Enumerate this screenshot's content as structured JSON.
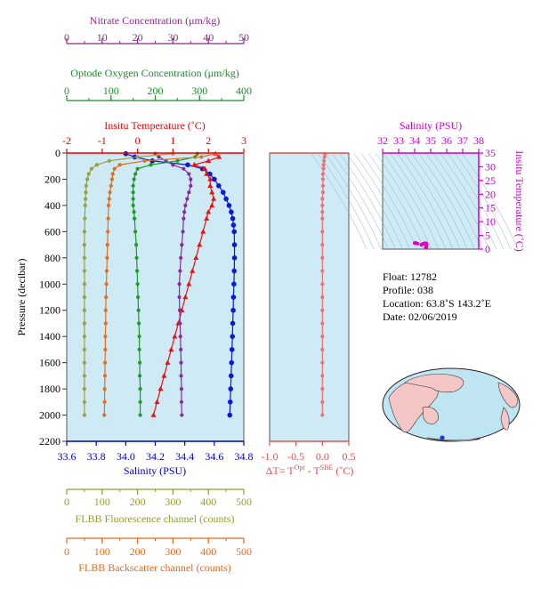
{
  "chart_data": [
    {
      "type": "line",
      "axes_top": [
        {
          "label": "Nitrate Concentration (μm/kg)",
          "color": "#8b2a8b",
          "range": [
            0,
            50
          ],
          "ticks": [
            "0",
            "10",
            "20",
            "30",
            "40",
            "50"
          ]
        },
        {
          "label": "Optode Oxygen Concentration (μm/kg)",
          "color": "#1f8a2a",
          "range": [
            0,
            400
          ],
          "ticks": [
            "0",
            "100",
            "200",
            "300",
            "400"
          ]
        },
        {
          "label": "Insitu Temperature (˚C)",
          "color": "#ee0000",
          "range": [
            -2,
            3
          ],
          "ticks": [
            "-2",
            "-1",
            "0",
            "1",
            "2",
            "3"
          ]
        }
      ],
      "axes_bottom": [
        {
          "label": "Salinity (PSU)",
          "color": "#0000bb",
          "range": [
            33.6,
            34.8
          ],
          "ticks": [
            "33.6",
            "33.8",
            "34.0",
            "34.2",
            "34.4",
            "34.6",
            "34.8"
          ]
        },
        {
          "label": "FLBB Fluorescence channel (counts)",
          "color": "#9a9a30",
          "range": [
            0,
            500
          ],
          "ticks": [
            "0",
            "100",
            "200",
            "300",
            "400",
            "500"
          ]
        },
        {
          "label": "FLBB Backscatter channel (counts)",
          "color": "#e06a1c",
          "range": [
            0,
            500
          ],
          "ticks": [
            "0",
            "100",
            "200",
            "300",
            "400",
            "500"
          ]
        }
      ],
      "y_axis": {
        "label": "Pressure (decibar)",
        "range": [
          0,
          2200
        ],
        "inverted": true,
        "ticks": [
          "0",
          "200",
          "400",
          "600",
          "800",
          "1000",
          "1200",
          "1400",
          "1600",
          "1800",
          "2000",
          "2200"
        ]
      },
      "background": "#cdeaf5",
      "series": [
        {
          "axis": "Salinity (PSU)",
          "color": "#0a18d8",
          "marker": "circle",
          "pressure": [
            5,
            30,
            60,
            90,
            120,
            160,
            200,
            250,
            300,
            350,
            400,
            450,
            500,
            550,
            600,
            700,
            800,
            900,
            1000,
            1100,
            1200,
            1300,
            1400,
            1500,
            1600,
            1700,
            1800,
            1900,
            2000
          ],
          "values": [
            34.0,
            34.06,
            34.18,
            34.42,
            34.52,
            34.57,
            34.6,
            34.63,
            34.66,
            34.68,
            34.7,
            34.715,
            34.725,
            34.73,
            34.735,
            34.737,
            34.737,
            34.735,
            34.733,
            34.73,
            34.728,
            34.725,
            34.723,
            34.72,
            34.717,
            34.714,
            34.711,
            34.708,
            34.705
          ]
        },
        {
          "axis": "Insitu Temperature (˚C)",
          "color": "#ee1010",
          "marker": "triangle",
          "pressure": [
            5,
            30,
            60,
            90,
            120,
            160,
            200,
            250,
            300,
            350,
            400,
            450,
            500,
            600,
            700,
            800,
            900,
            1000,
            1100,
            1200,
            1300,
            1400,
            1500,
            1600,
            1700,
            1800,
            1900,
            2000
          ],
          "values": [
            2.2,
            2.3,
            2.0,
            1.6,
            1.9,
            1.95,
            2.05,
            2.05,
            2.1,
            2.15,
            2.1,
            2.0,
            1.95,
            1.85,
            1.75,
            1.65,
            1.55,
            1.45,
            1.35,
            1.25,
            1.15,
            1.05,
            0.95,
            0.85,
            0.75,
            0.65,
            0.55,
            0.45
          ]
        },
        {
          "axis": "Nitrate Concentration (μm/kg)",
          "color": "#8a2a9c",
          "marker": "circle",
          "pressure": [
            5,
            30,
            60,
            90,
            120,
            160,
            200,
            250,
            300,
            350,
            400,
            450,
            500,
            600,
            700,
            800,
            900,
            1000,
            1100,
            1200,
            1300,
            1400,
            1500,
            1600,
            1700,
            1800,
            1900,
            2000
          ],
          "values": [
            25,
            26,
            28,
            30,
            33,
            34.5,
            35,
            35,
            34.5,
            34,
            33.5,
            33.2,
            33,
            32.8,
            32.5,
            32.2,
            32,
            31.8,
            31.8,
            31.9,
            32,
            32.1,
            32.2,
            32.3,
            32.3,
            32.4,
            32.4,
            32.5
          ]
        },
        {
          "axis": "Optode Oxygen Concentration (μm/kg)",
          "color": "#1f9a2a",
          "marker": "circle",
          "pressure": [
            5,
            30,
            60,
            90,
            120,
            160,
            200,
            250,
            300,
            350,
            400,
            450,
            500,
            600,
            700,
            800,
            900,
            1000,
            1100,
            1200,
            1300,
            1400,
            1500,
            1600,
            1700,
            1800,
            1900,
            2000
          ],
          "values": [
            295,
            290,
            250,
            190,
            160,
            155,
            152,
            150,
            150,
            150,
            150,
            152,
            153,
            155,
            157,
            158,
            159,
            160,
            161,
            162,
            163,
            164,
            164,
            165,
            165,
            166,
            166,
            166
          ]
        },
        {
          "axis": "FLBB Fluorescence channel (counts)",
          "color": "#9aa040",
          "marker": "circle",
          "pressure": [
            5,
            30,
            60,
            90,
            120,
            160,
            200,
            250,
            300,
            350,
            400,
            500,
            600,
            700,
            800,
            900,
            1000,
            1100,
            1200,
            1300,
            1400,
            1500,
            1600,
            1700,
            1800,
            1900,
            2000
          ],
          "values": [
            300,
            200,
            120,
            85,
            70,
            62,
            58,
            55,
            54,
            53,
            52,
            51,
            50,
            50,
            50,
            50,
            50,
            50,
            50,
            50,
            50,
            50,
            50,
            50,
            50,
            50,
            50
          ]
        },
        {
          "axis": "FLBB Backscatter channel (counts)",
          "color": "#e07020",
          "marker": "circle",
          "pressure": [
            5,
            30,
            60,
            90,
            120,
            160,
            200,
            250,
            300,
            350,
            400,
            500,
            600,
            700,
            800,
            900,
            1000,
            1100,
            1200,
            1300,
            1400,
            1500,
            1600,
            1700,
            1800,
            1900,
            2000
          ],
          "values": [
            420,
            380,
            220,
            150,
            135,
            130,
            128,
            125,
            122,
            120,
            118,
            117,
            116,
            115,
            114,
            113,
            112,
            111,
            110,
            110,
            109,
            109,
            108,
            108,
            107,
            107,
            106
          ]
        }
      ]
    },
    {
      "type": "scatter",
      "xlabel": "ΔT= Tᴼᵖᵗ - Tˢᴮᴱ (˚C)",
      "xlim": [
        -1.0,
        0.5
      ],
      "x_ticks": [
        "-1.0",
        "-0.5",
        "0.0",
        "0.5"
      ],
      "ylim": [
        0,
        2200
      ],
      "color": "#f07070",
      "pressure": [
        5,
        30,
        60,
        90,
        120,
        160,
        200,
        250,
        300,
        350,
        400,
        450,
        500,
        600,
        700,
        800,
        900,
        1000,
        1100,
        1200,
        1300,
        1400,
        1500,
        1600,
        1700,
        1800,
        1900,
        2000
      ],
      "values": [
        0.05,
        0.04,
        0.03,
        0.02,
        0.02,
        0.01,
        0.01,
        0.01,
        0.01,
        0.0,
        0.0,
        0.0,
        0.0,
        0.0,
        0.0,
        0.0,
        0.0,
        0.0,
        0.0,
        0.0,
        0.0,
        0.0,
        0.0,
        0.0,
        0.0,
        0.0,
        0.0,
        0.0
      ]
    },
    {
      "type": "scatter",
      "title": "Salinity (PSU)",
      "xlim": [
        32,
        38
      ],
      "x_ticks": [
        "32",
        "33",
        "34",
        "35",
        "36",
        "37",
        "38"
      ],
      "ylabel": "Insitu Temperature (˚C)",
      "ylim": [
        0,
        35
      ],
      "y_ticks": [
        "0",
        "5",
        "10",
        "15",
        "20",
        "25",
        "30",
        "35"
      ],
      "color": "#e000c0",
      "points": [
        [
          34.0,
          2.2
        ],
        [
          34.06,
          2.3
        ],
        [
          34.18,
          2.0
        ],
        [
          34.42,
          1.6
        ],
        [
          34.52,
          1.9
        ],
        [
          34.57,
          1.95
        ],
        [
          34.6,
          2.05
        ],
        [
          34.63,
          2.05
        ],
        [
          34.66,
          2.1
        ],
        [
          34.68,
          2.15
        ],
        [
          34.7,
          2.1
        ],
        [
          34.715,
          2.0
        ],
        [
          34.725,
          1.95
        ],
        [
          34.735,
          1.85
        ],
        [
          34.737,
          1.75
        ],
        [
          34.737,
          1.65
        ],
        [
          34.735,
          1.55
        ],
        [
          34.733,
          1.45
        ],
        [
          34.73,
          1.35
        ],
        [
          34.728,
          1.25
        ],
        [
          34.725,
          1.15
        ],
        [
          34.723,
          1.05
        ],
        [
          34.72,
          0.95
        ],
        [
          34.717,
          0.85
        ],
        [
          34.714,
          0.75
        ],
        [
          34.711,
          0.65
        ],
        [
          34.708,
          0.55
        ],
        [
          34.705,
          0.45
        ]
      ]
    }
  ],
  "info": {
    "float": "Float:  12782",
    "profile": "Profile:  038",
    "location": "Location:  63.8˚S  143.2˚E",
    "date": "Date:  02/06/2019"
  },
  "map": {
    "ocean_color": "#bfe4f2",
    "land_color": "#f5c6c6",
    "marker_color": "#1a3ad8",
    "marker_lon": 143.2,
    "marker_lat": -63.8
  }
}
